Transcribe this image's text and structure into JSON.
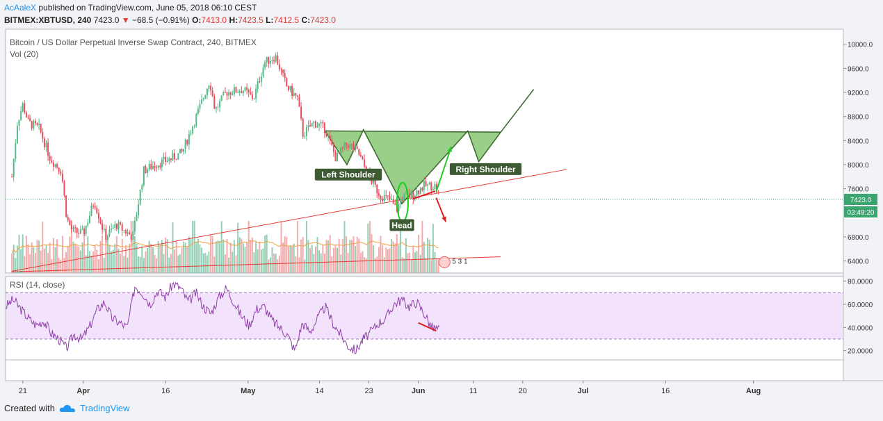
{
  "header": {
    "author": "AcAaleX",
    "published": "published on TradingView.com, June 05, 2018 06:10 CEST",
    "symbol": "BITMEX:XBTUSD, 240",
    "last": "7423.0",
    "change": "−68.5 (−0.91%)",
    "o_label": "O:",
    "o": "7413.0",
    "h_label": "H:",
    "h": "7423.5",
    "l_label": "L:",
    "l": "7412.5",
    "c_label": "C:",
    "c": "7423.0"
  },
  "footer": {
    "created_with": "Created with",
    "brand": "TradingView"
  },
  "colors": {
    "up": "#6fbf9c",
    "down": "#f28f8f",
    "pattern_fill": "#7fc36a",
    "pattern_stroke": "#3f6b33",
    "trend": "#e53935",
    "rsi": "#8e3fa8",
    "rsi_band": "#f3e2fb",
    "price_tag": "#3aa56f"
  },
  "chart_data": [
    {
      "type": "candlestick",
      "title": "Bitcoin / US Dollar Perpetual Inverse Swap Contract, 240, BITMEX",
      "volume_label": "Vol (20)",
      "y_ticks": [
        "10000.0",
        "9600.0",
        "9200.0",
        "8800.0",
        "8400.0",
        "8000.0",
        "7600.0",
        "6800.0",
        "6400.0"
      ],
      "ylim": [
        6200,
        10250
      ],
      "x_ticks": [
        "21",
        "Apr",
        "16",
        "May",
        "14",
        "23",
        "Jun",
        "11",
        "20",
        "Jul",
        "16",
        "Aug"
      ],
      "last_price": "7423.0",
      "countdown": "03:49:20",
      "close_path": [
        {
          "x": "Mar 19",
          "y": 7800
        },
        {
          "x": "Mar 20",
          "y": 8700
        },
        {
          "x": "Mar 21",
          "y": 9000
        },
        {
          "x": "Mar 22",
          "y": 8700
        },
        {
          "x": "Mar 24",
          "y": 8600
        },
        {
          "x": "Mar 26",
          "y": 8100
        },
        {
          "x": "Mar 28",
          "y": 7900
        },
        {
          "x": "Mar 29",
          "y": 7100
        },
        {
          "x": "Mar 30",
          "y": 6900
        },
        {
          "x": "Apr 1",
          "y": 6850
        },
        {
          "x": "Apr 3",
          "y": 7400
        },
        {
          "x": "Apr 5",
          "y": 6800
        },
        {
          "x": "Apr 7",
          "y": 7000
        },
        {
          "x": "Apr 10",
          "y": 6800
        },
        {
          "x": "Apr 12",
          "y": 7900
        },
        {
          "x": "Apr 14",
          "y": 8000
        },
        {
          "x": "Apr 17",
          "y": 8100
        },
        {
          "x": "Apr 19",
          "y": 8200
        },
        {
          "x": "Apr 22",
          "y": 8900
        },
        {
          "x": "Apr 24",
          "y": 9400
        },
        {
          "x": "Apr 25",
          "y": 8900
        },
        {
          "x": "Apr 27",
          "y": 9200
        },
        {
          "x": "Apr 30",
          "y": 9250
        },
        {
          "x": "May 2",
          "y": 9100
        },
        {
          "x": "May 4",
          "y": 9700
        },
        {
          "x": "May 6",
          "y": 9800
        },
        {
          "x": "May 8",
          "y": 9300
        },
        {
          "x": "May 10",
          "y": 9100
        },
        {
          "x": "May 11",
          "y": 8500
        },
        {
          "x": "May 13",
          "y": 8700
        },
        {
          "x": "May 15",
          "y": 8600
        },
        {
          "x": "May 17",
          "y": 8100
        },
        {
          "x": "May 19",
          "y": 8350
        },
        {
          "x": "May 21",
          "y": 8200
        },
        {
          "x": "May 23",
          "y": 7800
        },
        {
          "x": "May 25",
          "y": 7500
        },
        {
          "x": "May 27",
          "y": 7400
        },
        {
          "x": "May 28",
          "y": 7250
        },
        {
          "x": "May 29",
          "y": 7450
        },
        {
          "x": "May 31",
          "y": 7500
        },
        {
          "x": "Jun 2",
          "y": 7650
        },
        {
          "x": "Jun 4",
          "y": 7650
        },
        {
          "x": "Jun 5",
          "y": 7423
        }
      ],
      "annotations": {
        "left_shoulder": "Left Shoulder",
        "head": "Head",
        "right_shoulder": "Right Shoulder",
        "event_marker": "5 3 1"
      }
    },
    {
      "type": "line",
      "title": "RSI (14, close)",
      "y_ticks": [
        "80.0000",
        "60.0000",
        "40.0000",
        "20.0000"
      ],
      "ylim": [
        12,
        84
      ],
      "band": [
        30,
        70
      ],
      "series": [
        {
          "values": [
            58,
            64,
            56,
            48,
            42,
            46,
            35,
            30,
            22,
            34,
            30,
            40,
            55,
            62,
            48,
            44,
            40,
            76,
            70,
            60,
            72,
            66,
            78,
            74,
            62,
            70,
            58,
            52,
            66,
            74,
            62,
            50,
            42,
            56,
            58,
            46,
            40,
            34,
            20,
            44,
            36,
            48,
            58,
            44,
            34,
            24,
            20,
            30,
            36,
            44,
            48,
            60,
            64,
            58,
            62,
            52,
            40,
            38
          ]
        }
      ]
    }
  ]
}
